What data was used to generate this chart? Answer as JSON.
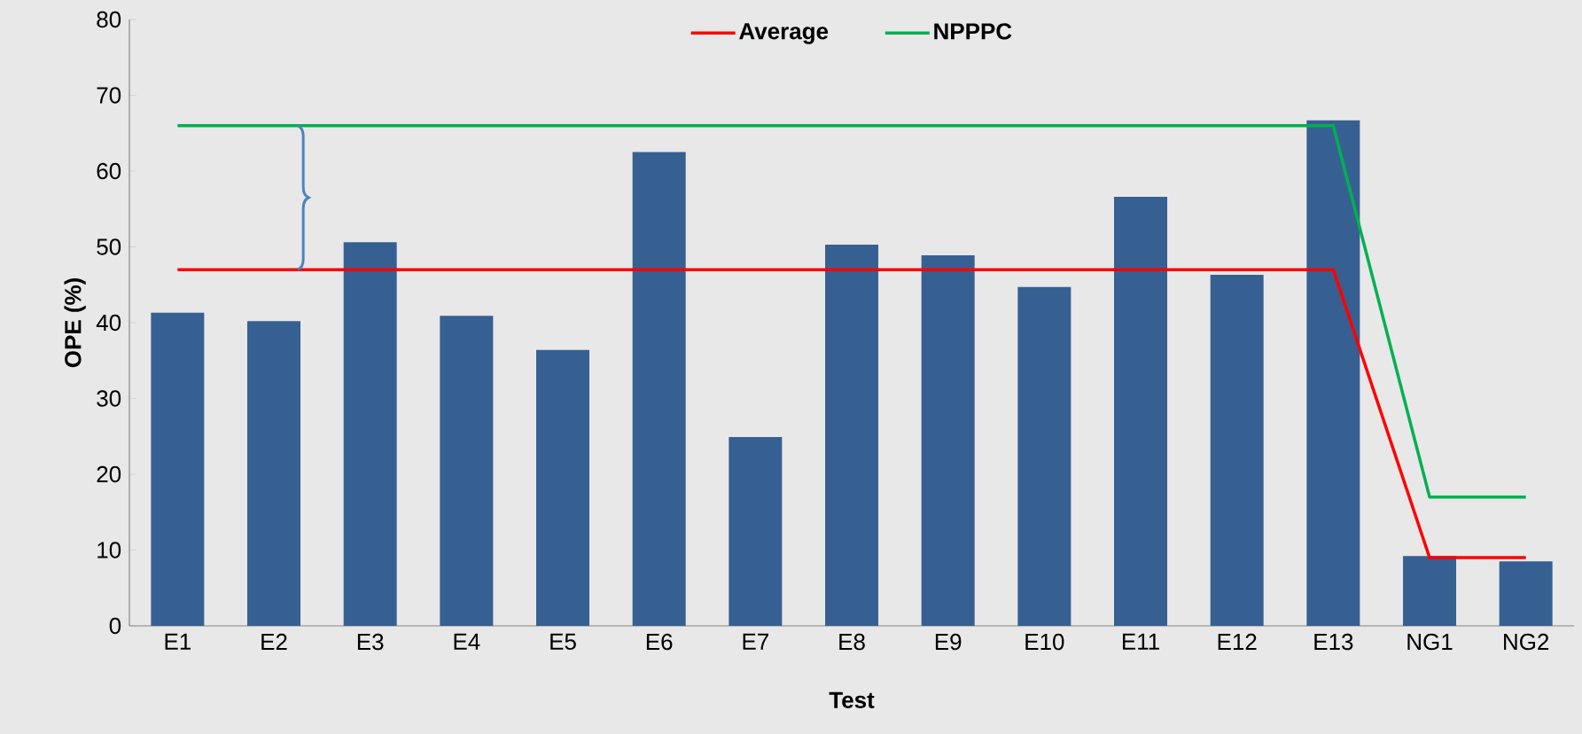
{
  "chart_data": {
    "type": "bar",
    "xlabel": "Test",
    "ylabel": "OPE (%)",
    "categories": [
      "E1",
      "E2",
      "E3",
      "E4",
      "E5",
      "E6",
      "E7",
      "E8",
      "E9",
      "E10",
      "E11",
      "E12",
      "E13",
      "NG1",
      "NG2"
    ],
    "series": [
      {
        "color": "#376092",
        "values": [
          41.3,
          40.2,
          50.6,
          40.9,
          36.4,
          62.5,
          24.9,
          50.3,
          48.9,
          44.7,
          56.6,
          46.3,
          66.7,
          9.2,
          8.5
        ]
      },
      {
        "type": "line",
        "name": "Average",
        "color": "#ff0000",
        "values": [
          47,
          47,
          47,
          47,
          47,
          47,
          47,
          47,
          47,
          47,
          47,
          47,
          47,
          9,
          9
        ]
      },
      {
        "type": "line",
        "name": "NPPPC",
        "color": "#00b050",
        "values": [
          66,
          66,
          66,
          66,
          66,
          66,
          66,
          66,
          66,
          66,
          66,
          66,
          66,
          17,
          17
        ]
      }
    ],
    "ylim": [
      0,
      80
    ],
    "yticks": [
      0,
      10,
      20,
      30,
      40,
      50,
      60,
      70,
      80
    ],
    "legend": "top",
    "grid": false
  }
}
